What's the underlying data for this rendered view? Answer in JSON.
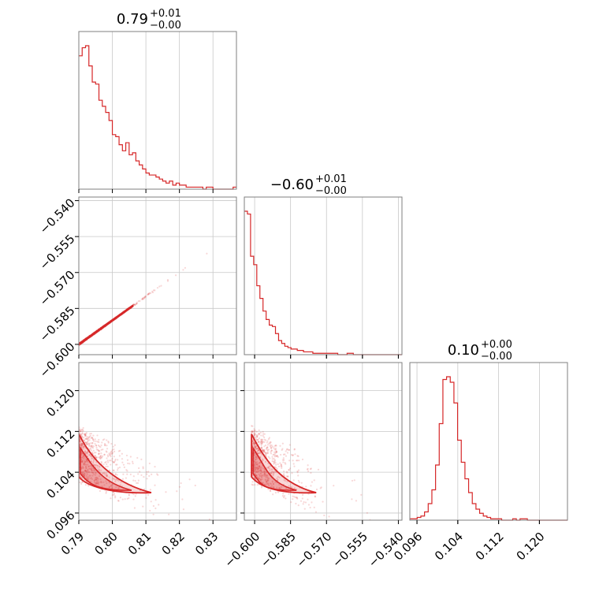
{
  "chart_data": {
    "type": "corner",
    "color": "#d62728",
    "parameters": [
      {
        "title_main": "0.79",
        "title_sup": "+0.01",
        "title_sub": "−0.00",
        "range": [
          0.79,
          0.837
        ],
        "ticks": [
          0.79,
          0.8,
          0.81,
          0.82,
          0.83
        ],
        "tick_labels": [
          "0.79",
          "0.80",
          "0.81",
          "0.82",
          "0.83"
        ]
      },
      {
        "title_main": "−0.60",
        "title_sup": "+0.01",
        "title_sub": "−0.00",
        "range": [
          -0.6043,
          -0.5385
        ],
        "ticks": [
          -0.6,
          -0.585,
          -0.57,
          -0.555,
          -0.54
        ],
        "tick_labels": [
          "−0.600",
          "−0.585",
          "−0.570",
          "−0.555",
          "−0.540"
        ]
      },
      {
        "title_main": "0.10",
        "title_sup": "+0.00",
        "title_sub": "−0.00",
        "range": [
          0.0946,
          0.1255
        ],
        "ticks": [
          0.096,
          0.104,
          0.112,
          0.12
        ],
        "tick_labels": [
          "0.096",
          "0.104",
          "0.112",
          "0.120"
        ]
      }
    ],
    "histograms": [
      {
        "param": 0,
        "bin_start": 0.79,
        "bin_width": 0.001,
        "counts": [
          66,
          70,
          71,
          61,
          53,
          52,
          44,
          41,
          38,
          34,
          27,
          26,
          22,
          19,
          23,
          17,
          18,
          14,
          12,
          10,
          8,
          7,
          7,
          6,
          5,
          4,
          3,
          4,
          2,
          3,
          2,
          2,
          1,
          1,
          1,
          1,
          1,
          0,
          1,
          1,
          0,
          0,
          0,
          0,
          0,
          0,
          1
        ]
      },
      {
        "param": 1,
        "bin_start": -0.6043,
        "bin_width": 0.0013,
        "counts": [
          102,
          100,
          70,
          64,
          49,
          40,
          31,
          25,
          21,
          20,
          15,
          10,
          8,
          6,
          5,
          4,
          4,
          3,
          3,
          2,
          2,
          2,
          1,
          1,
          1,
          1,
          1,
          1,
          1,
          1,
          0,
          0,
          0,
          1,
          1,
          0,
          0,
          0,
          0,
          0,
          0,
          0,
          0,
          0,
          0,
          0,
          0,
          0,
          0,
          0,
          0
        ]
      },
      {
        "param": 2,
        "bin_start": 0.0946,
        "bin_width": 0.00072,
        "counts": [
          1,
          1,
          2,
          3,
          6,
          12,
          22,
          40,
          70,
          102,
          104,
          100,
          85,
          58,
          42,
          30,
          20,
          12,
          8,
          5,
          3,
          2,
          1,
          1,
          1,
          0,
          0,
          0,
          1,
          0,
          1,
          1,
          0,
          0,
          0,
          0,
          0,
          0,
          0,
          0,
          0,
          0,
          0
        ]
      }
    ],
    "scatter_2d": [
      {
        "x_param": 0,
        "y_param": 1,
        "relation": "y = -0.600 + 1.0*(x - 0.790)"
      },
      {
        "x_param": 0,
        "y_param": 2,
        "relation": "y decreases from ~0.108 to ~0.100 as x increases"
      },
      {
        "x_param": 1,
        "y_param": 2,
        "relation": "y decreases from ~0.108 to ~0.100 as x increases"
      }
    ],
    "grid": true
  }
}
